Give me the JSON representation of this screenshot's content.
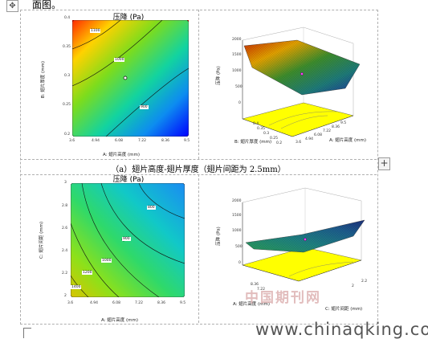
{
  "doc": {
    "move_handle": "✥",
    "top_text": "面图。",
    "caption": "（a）翅片高度-翅片厚度（翅片间距为 2.5mm）",
    "plus": "+"
  },
  "charts": {
    "contour_a": {
      "title": "压降 (Pa)",
      "xlabel": "A: 翅片高度 (mm)",
      "ylabel": "B: 翅片厚度 (mm)",
      "xticks": [
        "3.6",
        "4.94",
        "6.08",
        "7.22",
        "8.36",
        "9.5"
      ],
      "yticks": [
        "0.2",
        "0.25",
        "0.3",
        "0.35",
        "0.4"
      ],
      "contours": [
        "1100",
        "1000",
        "900"
      ]
    },
    "surface_a": {
      "zlabel": "压降 (Pa)",
      "zticks": [
        "2000",
        "1500",
        "1000",
        "500",
        "0"
      ],
      "xlabel": "B: 翅片厚度 (mm)",
      "ylabel": "A: 翅片高度 (mm)",
      "xticks": [
        "0.4",
        "0.35",
        "0.3",
        "0.25",
        "0.2"
      ],
      "yticks": [
        "3.6",
        "4.94",
        "6.08",
        "7.22",
        "8.36",
        "9.5"
      ]
    },
    "contour_b": {
      "title": "压降 (Pa)",
      "xlabel": "A: 翅片高度 (mm)",
      "ylabel": "C: 翅片间距 (mm)",
      "xticks": [
        "3.6",
        "4.94",
        "6.08",
        "7.22",
        "8.36",
        "9.5"
      ],
      "yticks": [
        "2",
        "2.2",
        "2.4",
        "2.6",
        "2.8",
        "3"
      ],
      "contours": [
        "800",
        "900",
        "1000",
        "1200",
        "1400"
      ]
    },
    "surface_b": {
      "zlabel": "压降 (Pa)",
      "zticks": [
        "2000",
        "1500",
        "1000",
        "500",
        "0"
      ],
      "xlabel": "A: 翅片高度 (mm)",
      "ylabel": "C: 翅片间距 (mm)",
      "xticks": [
        "8.36",
        "7.22"
      ],
      "yticks": [
        "2.2",
        "2"
      ]
    }
  },
  "watermark": {
    "text": "中国期刊网",
    "site": "www.chinaqking.com"
  }
}
